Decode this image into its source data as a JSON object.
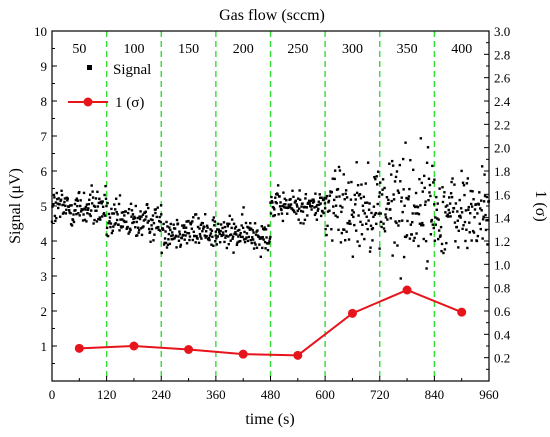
{
  "chart_data": {
    "type": "line",
    "top_axis_title": "Gas flow  (sccm)",
    "flow_labels": [
      "50",
      "100",
      "150",
      "200",
      "250",
      "300",
      "350",
      "400"
    ],
    "xlabel": "time (s)",
    "ylabel_left": "Signal (μV)",
    "ylabel_right": "1 (σ)",
    "x_ticks": [
      "0",
      "120",
      "240",
      "360",
      "480",
      "600",
      "720",
      "840",
      "960"
    ],
    "y_left_ticks": [
      "1",
      "2",
      "3",
      "4",
      "5",
      "6",
      "7",
      "8",
      "9",
      "10"
    ],
    "y_right_ticks": [
      "0.2",
      "0.4",
      "0.6",
      "0.8",
      "1.0",
      "1.2",
      "1.4",
      "1.6",
      "1.8",
      "2.0",
      "2.2",
      "2.4",
      "2.6",
      "2.8",
      "3.0"
    ],
    "xlim": [
      0,
      960
    ],
    "ylim_left": [
      0,
      10
    ],
    "ylim_right": [
      0,
      3.0
    ],
    "divider_times": [
      120,
      240,
      360,
      480,
      600,
      720,
      840
    ],
    "series": [
      {
        "name": "Signal",
        "axis": "left",
        "style": "black square scatter",
        "segments": [
          {
            "t_start": 0,
            "t_end": 120,
            "mean": 4.95,
            "spread": 0.3
          },
          {
            "t_start": 120,
            "t_end": 240,
            "mean": 4.55,
            "spread": 0.28
          },
          {
            "t_start": 240,
            "t_end": 360,
            "mean": 4.3,
            "spread": 0.25
          },
          {
            "t_start": 360,
            "t_end": 480,
            "mean": 4.2,
            "spread": 0.25
          },
          {
            "t_start": 480,
            "t_end": 600,
            "mean": 5.0,
            "spread": 0.22
          },
          {
            "t_start": 600,
            "t_end": 720,
            "mean": 5.0,
            "spread": 0.6
          },
          {
            "t_start": 720,
            "t_end": 840,
            "mean": 5.0,
            "spread": 0.8
          },
          {
            "t_start": 840,
            "t_end": 960,
            "mean": 4.8,
            "spread": 0.6
          }
        ]
      },
      {
        "name": "1 (σ)",
        "axis": "right",
        "style": "red line with circles",
        "x": [
          60,
          180,
          300,
          420,
          540,
          660,
          780,
          900
        ],
        "y": [
          0.28,
          0.3,
          0.27,
          0.23,
          0.22,
          0.58,
          0.78,
          0.59
        ]
      }
    ],
    "colors": {
      "signal": "#000000",
      "sigma": "#e8141b",
      "divider": "#33dd33"
    }
  }
}
